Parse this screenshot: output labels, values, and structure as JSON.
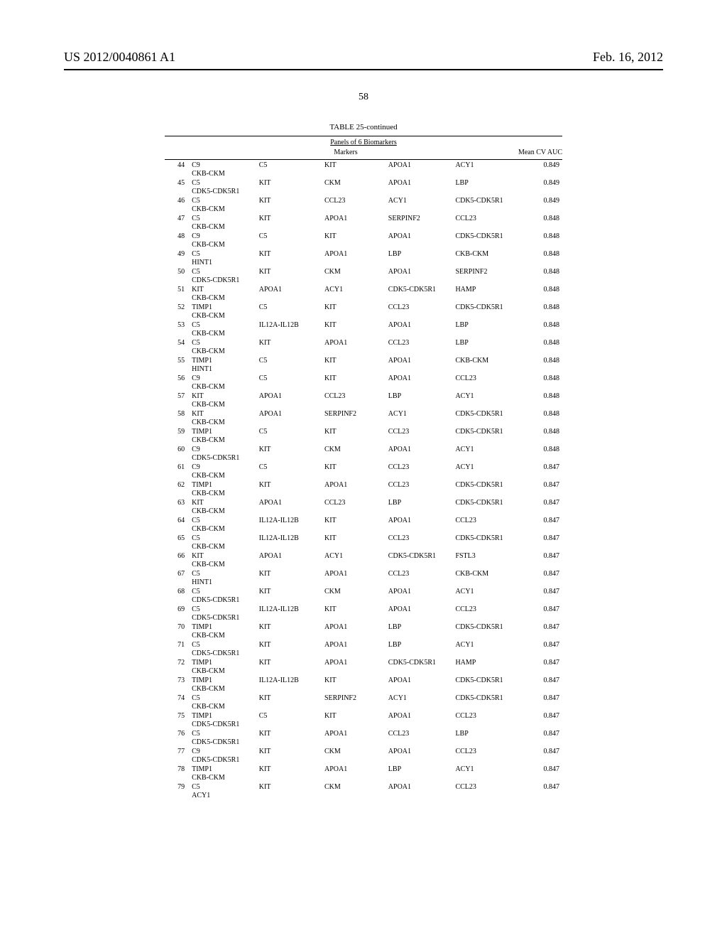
{
  "header": {
    "left": "US 2012/0040861 A1",
    "right": "Feb. 16, 2012",
    "page_number": "58"
  },
  "table": {
    "title": "TABLE 25-continued",
    "subtitle": "Panels of 6 Biomarkers",
    "columns_label": "Markers",
    "auc_label": "Mean CV AUC",
    "rows": [
      {
        "idx": "44",
        "m": [
          "C9",
          "C5",
          "KIT",
          "APOA1",
          "ACY1",
          "CKB-CKM"
        ],
        "auc": "0.849"
      },
      {
        "idx": "45",
        "m": [
          "C5",
          "KIT",
          "CKM",
          "APOA1",
          "LBP",
          "CDK5-CDK5R1"
        ],
        "auc": "0.849"
      },
      {
        "idx": "46",
        "m": [
          "C5",
          "KIT",
          "CCL23",
          "ACY1",
          "CDK5-CDK5R1",
          "CKB-CKM"
        ],
        "auc": "0.849"
      },
      {
        "idx": "47",
        "m": [
          "C5",
          "KIT",
          "APOA1",
          "SERPINF2",
          "CCL23",
          "CKB-CKM"
        ],
        "auc": "0.848"
      },
      {
        "idx": "48",
        "m": [
          "C9",
          "C5",
          "KIT",
          "APOA1",
          "CDK5-CDK5R1",
          "CKB-CKM"
        ],
        "auc": "0.848"
      },
      {
        "idx": "49",
        "m": [
          "C5",
          "KIT",
          "APOA1",
          "LBP",
          "CKB-CKM",
          "HINT1"
        ],
        "auc": "0.848"
      },
      {
        "idx": "50",
        "m": [
          "C5",
          "KIT",
          "CKM",
          "APOA1",
          "SERPINF2",
          "CDK5-CDK5R1"
        ],
        "auc": "0.848"
      },
      {
        "idx": "51",
        "m": [
          "KIT",
          "APOA1",
          "ACY1",
          "CDK5-CDK5R1",
          "HAMP",
          "CKB-CKM"
        ],
        "auc": "0.848"
      },
      {
        "idx": "52",
        "m": [
          "TIMP1",
          "C5",
          "KIT",
          "CCL23",
          "CDK5-CDK5R1",
          "CKB-CKM"
        ],
        "auc": "0.848"
      },
      {
        "idx": "53",
        "m": [
          "C5",
          "IL12A-IL12B",
          "KIT",
          "APOA1",
          "LBP",
          "CKB-CKM"
        ],
        "auc": "0.848"
      },
      {
        "idx": "54",
        "m": [
          "C5",
          "KIT",
          "APOA1",
          "CCL23",
          "LBP",
          "CKB-CKM"
        ],
        "auc": "0.848"
      },
      {
        "idx": "55",
        "m": [
          "TIMP1",
          "C5",
          "KIT",
          "APOA1",
          "CKB-CKM",
          "HINT1"
        ],
        "auc": "0.848"
      },
      {
        "idx": "56",
        "m": [
          "C9",
          "C5",
          "KIT",
          "APOA1",
          "CCL23",
          "CKB-CKM"
        ],
        "auc": "0.848"
      },
      {
        "idx": "57",
        "m": [
          "KIT",
          "APOA1",
          "CCL23",
          "LBP",
          "ACY1",
          "CKB-CKM"
        ],
        "auc": "0.848"
      },
      {
        "idx": "58",
        "m": [
          "KIT",
          "APOA1",
          "SERPINF2",
          "ACY1",
          "CDK5-CDK5R1",
          "CKB-CKM"
        ],
        "auc": "0.848"
      },
      {
        "idx": "59",
        "m": [
          "TIMP1",
          "C5",
          "KIT",
          "CCL23",
          "CDK5-CDK5R1",
          "CKB-CKM"
        ],
        "auc": "0.848"
      },
      {
        "idx": "60",
        "m": [
          "C9",
          "KIT",
          "CKM",
          "APOA1",
          "ACY1",
          "CDK5-CDK5R1"
        ],
        "auc": "0.848"
      },
      {
        "idx": "61",
        "m": [
          "C9",
          "C5",
          "KIT",
          "CCL23",
          "ACY1",
          "CKB-CKM"
        ],
        "auc": "0.847"
      },
      {
        "idx": "62",
        "m": [
          "TIMP1",
          "KIT",
          "APOA1",
          "CCL23",
          "CDK5-CDK5R1",
          "CKB-CKM"
        ],
        "auc": "0.847"
      },
      {
        "idx": "63",
        "m": [
          "KIT",
          "APOA1",
          "CCL23",
          "LBP",
          "CDK5-CDK5R1",
          "CKB-CKM"
        ],
        "auc": "0.847"
      },
      {
        "idx": "64",
        "m": [
          "C5",
          "IL12A-IL12B",
          "KIT",
          "APOA1",
          "CCL23",
          "CKB-CKM"
        ],
        "auc": "0.847"
      },
      {
        "idx": "65",
        "m": [
          "C5",
          "IL12A-IL12B",
          "KIT",
          "CCL23",
          "CDK5-CDK5R1",
          "CKB-CKM"
        ],
        "auc": "0.847"
      },
      {
        "idx": "66",
        "m": [
          "KIT",
          "APOA1",
          "ACY1",
          "CDK5-CDK5R1",
          "FSTL3",
          "CKB-CKM"
        ],
        "auc": "0.847"
      },
      {
        "idx": "67",
        "m": [
          "C5",
          "KIT",
          "APOA1",
          "CCL23",
          "CKB-CKM",
          "HINT1"
        ],
        "auc": "0.847"
      },
      {
        "idx": "68",
        "m": [
          "C5",
          "KIT",
          "CKM",
          "APOA1",
          "ACY1",
          "CDK5-CDK5R1"
        ],
        "auc": "0.847"
      },
      {
        "idx": "69",
        "m": [
          "C5",
          "IL12A-IL12B",
          "KIT",
          "APOA1",
          "CCL23",
          "CDK5-CDK5R1"
        ],
        "auc": "0.847"
      },
      {
        "idx": "70",
        "m": [
          "TIMP1",
          "KIT",
          "APOA1",
          "LBP",
          "CDK5-CDK5R1",
          "CKB-CKM"
        ],
        "auc": "0.847"
      },
      {
        "idx": "71",
        "m": [
          "C5",
          "KIT",
          "APOA1",
          "LBP",
          "ACY1",
          "CDK5-CDK5R1"
        ],
        "auc": "0.847"
      },
      {
        "idx": "72",
        "m": [
          "TIMP1",
          "KIT",
          "APOA1",
          "CDK5-CDK5R1",
          "HAMP",
          "CKB-CKM"
        ],
        "auc": "0.847"
      },
      {
        "idx": "73",
        "m": [
          "TIMP1",
          "IL12A-IL12B",
          "KIT",
          "APOA1",
          "CDK5-CDK5R1",
          "CKB-CKM"
        ],
        "auc": "0.847"
      },
      {
        "idx": "74",
        "m": [
          "C5",
          "KIT",
          "SERPINF2",
          "ACY1",
          "CDK5-CDK5R1",
          "CKB-CKM"
        ],
        "auc": "0.847"
      },
      {
        "idx": "75",
        "m": [
          "TIMP1",
          "C5",
          "KIT",
          "APOA1",
          "CCL23",
          "CDK5-CDK5R1"
        ],
        "auc": "0.847"
      },
      {
        "idx": "76",
        "m": [
          "C5",
          "KIT",
          "APOA1",
          "CCL23",
          "LBP",
          "CDK5-CDK5R1"
        ],
        "auc": "0.847"
      },
      {
        "idx": "77",
        "m": [
          "C9",
          "KIT",
          "CKM",
          "APOA1",
          "CCL23",
          "CDK5-CDK5R1"
        ],
        "auc": "0.847"
      },
      {
        "idx": "78",
        "m": [
          "TIMP1",
          "KIT",
          "APOA1",
          "LBP",
          "ACY1",
          "CKB-CKM"
        ],
        "auc": "0.847"
      },
      {
        "idx": "79",
        "m": [
          "C5",
          "KIT",
          "CKM",
          "APOA1",
          "CCL23",
          "ACY1"
        ],
        "auc": "0.847"
      }
    ]
  }
}
